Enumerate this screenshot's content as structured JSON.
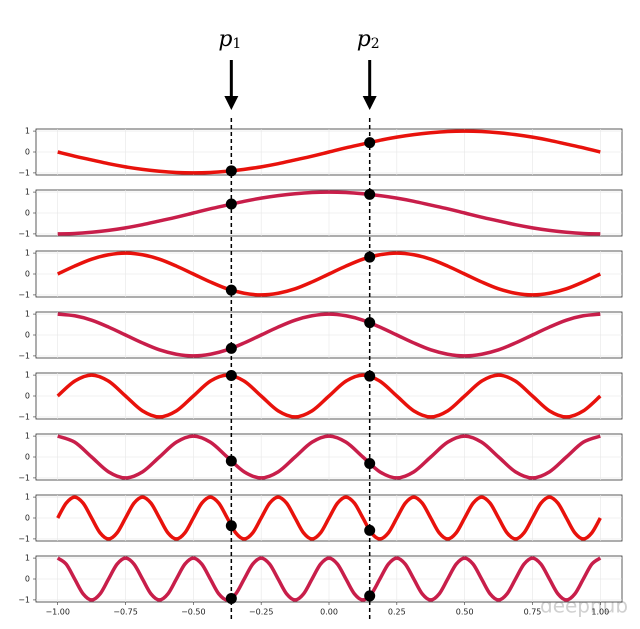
{
  "chart_data": [
    {
      "type": "line",
      "xlim": [
        -1.08,
        1.08
      ],
      "ylim": [
        -1.1,
        1.1
      ],
      "yticks": [
        {
          "value": -1,
          "label": "−1"
        },
        0,
        1
      ],
      "grid": true,
      "x": [
        -1,
        -0.9375,
        -0.875,
        -0.8125,
        -0.75,
        -0.6875,
        -0.625,
        -0.5625,
        -0.5,
        -0.4375,
        -0.375,
        -0.3125,
        -0.25,
        -0.1875,
        -0.125,
        -0.0625,
        0,
        0.0625,
        0.125,
        0.1875,
        0.25,
        0.3125,
        0.375,
        0.4375,
        0.5,
        0.5625,
        0.625,
        0.6875,
        0.75,
        0.8125,
        0.875,
        0.9375,
        1
      ],
      "series": [
        {
          "color": "#e8120c",
          "values": [
            0,
            -0.2,
            -0.38,
            -0.56,
            -0.71,
            -0.83,
            -0.92,
            -0.98,
            -1,
            -0.98,
            -0.92,
            -0.83,
            -0.71,
            -0.56,
            -0.38,
            -0.2,
            0,
            0.2,
            0.38,
            0.56,
            0.71,
            0.83,
            0.92,
            0.98,
            1,
            0.98,
            0.92,
            0.83,
            0.71,
            0.56,
            0.38,
            0.2,
            0
          ]
        }
      ],
      "markers": {
        "color": "#000000",
        "x": [
          -0.36,
          0.15
        ],
        "values": [
          -0.9,
          0.45
        ]
      }
    },
    {
      "type": "line",
      "xlim": [
        -1.08,
        1.08
      ],
      "ylim": [
        -1.1,
        1.1
      ],
      "yticks": [
        {
          "value": -1,
          "label": "−1"
        },
        0,
        1
      ],
      "grid": true,
      "x": [
        -1,
        -0.9375,
        -0.875,
        -0.8125,
        -0.75,
        -0.6875,
        -0.625,
        -0.5625,
        -0.5,
        -0.4375,
        -0.375,
        -0.3125,
        -0.25,
        -0.1875,
        -0.125,
        -0.0625,
        0,
        0.0625,
        0.125,
        0.1875,
        0.25,
        0.3125,
        0.375,
        0.4375,
        0.5,
        0.5625,
        0.625,
        0.6875,
        0.75,
        0.8125,
        0.875,
        0.9375,
        1
      ],
      "series": [
        {
          "color": "#c81e4a",
          "values": [
            -1,
            -0.98,
            -0.92,
            -0.83,
            -0.71,
            -0.56,
            -0.38,
            -0.2,
            0,
            0.2,
            0.38,
            0.56,
            0.71,
            0.83,
            0.92,
            0.98,
            1,
            0.98,
            0.92,
            0.83,
            0.71,
            0.56,
            0.38,
            0.2,
            0,
            -0.2,
            -0.38,
            -0.56,
            -0.71,
            -0.83,
            -0.92,
            -0.98,
            -1
          ]
        }
      ],
      "markers": {
        "color": "#000000",
        "x": [
          -0.36,
          0.15
        ],
        "values": [
          0.43,
          0.89
        ]
      }
    },
    {
      "type": "line",
      "xlim": [
        -1.08,
        1.08
      ],
      "ylim": [
        -1.1,
        1.1
      ],
      "yticks": [
        {
          "value": -1,
          "label": "−1"
        },
        0,
        1
      ],
      "grid": true,
      "x": [
        -1,
        -0.9375,
        -0.875,
        -0.8125,
        -0.75,
        -0.6875,
        -0.625,
        -0.5625,
        -0.5,
        -0.4375,
        -0.375,
        -0.3125,
        -0.25,
        -0.1875,
        -0.125,
        -0.0625,
        0,
        0.0625,
        0.125,
        0.1875,
        0.25,
        0.3125,
        0.375,
        0.4375,
        0.5,
        0.5625,
        0.625,
        0.6875,
        0.75,
        0.8125,
        0.875,
        0.9375,
        1
      ],
      "series": [
        {
          "color": "#e8120c",
          "values": [
            0,
            0.38,
            0.71,
            0.92,
            1,
            0.92,
            0.71,
            0.38,
            0,
            -0.38,
            -0.71,
            -0.92,
            -1,
            -0.92,
            -0.71,
            -0.38,
            0,
            0.38,
            0.71,
            0.92,
            1,
            0.92,
            0.71,
            0.38,
            0,
            -0.38,
            -0.71,
            -0.92,
            -1,
            -0.92,
            -0.71,
            -0.38,
            0
          ]
        }
      ],
      "markers": {
        "color": "#000000",
        "x": [
          -0.36,
          0.15
        ],
        "values": [
          -0.77,
          0.81
        ]
      }
    },
    {
      "type": "line",
      "xlim": [
        -1.08,
        1.08
      ],
      "ylim": [
        -1.1,
        1.1
      ],
      "yticks": [
        {
          "value": -1,
          "label": "−1"
        },
        0,
        1
      ],
      "grid": true,
      "x": [
        -1,
        -0.9375,
        -0.875,
        -0.8125,
        -0.75,
        -0.6875,
        -0.625,
        -0.5625,
        -0.5,
        -0.4375,
        -0.375,
        -0.3125,
        -0.25,
        -0.1875,
        -0.125,
        -0.0625,
        0,
        0.0625,
        0.125,
        0.1875,
        0.25,
        0.3125,
        0.375,
        0.4375,
        0.5,
        0.5625,
        0.625,
        0.6875,
        0.75,
        0.8125,
        0.875,
        0.9375,
        1
      ],
      "series": [
        {
          "color": "#c81e4a",
          "values": [
            1,
            0.92,
            0.71,
            0.38,
            0,
            -0.38,
            -0.71,
            -0.92,
            -1,
            -0.92,
            -0.71,
            -0.38,
            0,
            0.38,
            0.71,
            0.92,
            1,
            0.92,
            0.71,
            0.38,
            0,
            -0.38,
            -0.71,
            -0.92,
            -1,
            -0.92,
            -0.71,
            -0.38,
            0,
            0.38,
            0.71,
            0.92,
            1
          ]
        }
      ],
      "markers": {
        "color": "#000000",
        "x": [
          -0.36,
          0.15
        ],
        "values": [
          -0.64,
          0.59
        ]
      }
    },
    {
      "type": "line",
      "xlim": [
        -1.08,
        1.08
      ],
      "ylim": [
        -1.1,
        1.1
      ],
      "yticks": [
        {
          "value": -1,
          "label": "−1"
        },
        0,
        1
      ],
      "grid": true,
      "x": [
        -1,
        -0.9375,
        -0.875,
        -0.8125,
        -0.75,
        -0.6875,
        -0.625,
        -0.5625,
        -0.5,
        -0.4375,
        -0.375,
        -0.3125,
        -0.25,
        -0.1875,
        -0.125,
        -0.0625,
        0,
        0.0625,
        0.125,
        0.1875,
        0.25,
        0.3125,
        0.375,
        0.4375,
        0.5,
        0.5625,
        0.625,
        0.6875,
        0.75,
        0.8125,
        0.875,
        0.9375,
        1
      ],
      "series": [
        {
          "color": "#e8120c",
          "values": [
            0,
            0.71,
            1,
            0.71,
            0,
            -0.71,
            -1,
            -0.71,
            0,
            0.71,
            1,
            0.71,
            0,
            -0.71,
            -1,
            -0.71,
            0,
            0.71,
            1,
            0.71,
            0,
            -0.71,
            -1,
            -0.71,
            0,
            0.71,
            1,
            0.71,
            0,
            -0.71,
            -1,
            -0.71,
            0
          ]
        }
      ],
      "markers": {
        "color": "#000000",
        "x": [
          -0.36,
          0.15
        ],
        "values": [
          0.98,
          0.95
        ]
      }
    },
    {
      "type": "line",
      "xlim": [
        -1.08,
        1.08
      ],
      "ylim": [
        -1.1,
        1.1
      ],
      "yticks": [
        {
          "value": -1,
          "label": "−1"
        },
        0,
        1
      ],
      "grid": true,
      "x": [
        -1,
        -0.9375,
        -0.875,
        -0.8125,
        -0.75,
        -0.6875,
        -0.625,
        -0.5625,
        -0.5,
        -0.4375,
        -0.375,
        -0.3125,
        -0.25,
        -0.1875,
        -0.125,
        -0.0625,
        0,
        0.0625,
        0.125,
        0.1875,
        0.25,
        0.3125,
        0.375,
        0.4375,
        0.5,
        0.5625,
        0.625,
        0.6875,
        0.75,
        0.8125,
        0.875,
        0.9375,
        1
      ],
      "series": [
        {
          "color": "#c81e4a",
          "values": [
            1,
            0.71,
            0,
            -0.71,
            -1,
            -0.71,
            0,
            0.71,
            1,
            0.71,
            0,
            -0.71,
            -1,
            -0.71,
            0,
            0.71,
            1,
            0.71,
            0,
            -0.71,
            -1,
            -0.71,
            0,
            0.71,
            1,
            0.71,
            0,
            -0.71,
            -1,
            -0.71,
            0,
            0.71,
            1
          ]
        }
      ],
      "markers": {
        "color": "#000000",
        "x": [
          -0.36,
          0.15
        ],
        "values": [
          -0.19,
          -0.31
        ]
      }
    },
    {
      "type": "line",
      "xlim": [
        -1.08,
        1.08
      ],
      "ylim": [
        -1.1,
        1.1
      ],
      "yticks": [
        {
          "value": -1,
          "label": "−1"
        },
        0,
        1
      ],
      "grid": true,
      "x": [
        -1,
        -0.96875,
        -0.9375,
        -0.90625,
        -0.875,
        -0.84375,
        -0.8125,
        -0.78125,
        -0.75,
        -0.71875,
        -0.6875,
        -0.65625,
        -0.625,
        -0.59375,
        -0.5625,
        -0.53125,
        -0.5,
        -0.46875,
        -0.4375,
        -0.40625,
        -0.375,
        -0.34375,
        -0.3125,
        -0.28125,
        -0.25,
        -0.21875,
        -0.1875,
        -0.15625,
        -0.125,
        -0.09375,
        -0.0625,
        -0.03125,
        0,
        0.03125,
        0.0625,
        0.09375,
        0.125,
        0.15625,
        0.1875,
        0.21875,
        0.25,
        0.28125,
        0.3125,
        0.34375,
        0.375,
        0.40625,
        0.4375,
        0.46875,
        0.5,
        0.53125,
        0.5625,
        0.59375,
        0.625,
        0.65625,
        0.6875,
        0.71875,
        0.75,
        0.78125,
        0.8125,
        0.84375,
        0.875,
        0.90625,
        0.9375,
        0.96875,
        1
      ],
      "series": [
        {
          "color": "#e8120c",
          "values": [
            0,
            0.71,
            1,
            0.71,
            0,
            -0.71,
            -1,
            -0.71,
            0,
            0.71,
            1,
            0.71,
            0,
            -0.71,
            -1,
            -0.71,
            0,
            0.71,
            1,
            0.71,
            0,
            -0.71,
            -1,
            -0.71,
            0,
            0.71,
            1,
            0.71,
            0,
            -0.71,
            -1,
            -0.71,
            0,
            0.71,
            1,
            0.71,
            0,
            -0.71,
            -1,
            -0.71,
            0,
            0.71,
            1,
            0.71,
            0,
            -0.71,
            -1,
            -0.71,
            0,
            0.71,
            1,
            0.71,
            0,
            -0.71,
            -1,
            -0.71,
            0,
            0.71,
            1,
            0.71,
            0,
            -0.71,
            -1,
            -0.71,
            0
          ]
        }
      ],
      "markers": {
        "color": "#000000",
        "x": [
          -0.36,
          0.15
        ],
        "values": [
          -0.37,
          -0.59
        ]
      }
    },
    {
      "type": "line",
      "xlim": [
        -1.08,
        1.08
      ],
      "ylim": [
        -1.1,
        1.1
      ],
      "yticks": [
        {
          "value": -1,
          "label": "−1"
        },
        0,
        1
      ],
      "grid": true,
      "xticks": [
        {
          "value": -1,
          "label": "−1.00"
        },
        {
          "value": -0.75,
          "label": "−0.75"
        },
        {
          "value": -0.5,
          "label": "−0.50"
        },
        {
          "value": -0.25,
          "label": "−0.25"
        },
        {
          "value": 0,
          "label": "0.00"
        },
        {
          "value": 0.25,
          "label": "0.25"
        },
        {
          "value": 0.5,
          "label": "0.50"
        },
        {
          "value": 0.75,
          "label": "0.75"
        },
        {
          "value": 1,
          "label": "1.00"
        }
      ],
      "x": [
        -1,
        -0.96875,
        -0.9375,
        -0.90625,
        -0.875,
        -0.84375,
        -0.8125,
        -0.78125,
        -0.75,
        -0.71875,
        -0.6875,
        -0.65625,
        -0.625,
        -0.59375,
        -0.5625,
        -0.53125,
        -0.5,
        -0.46875,
        -0.4375,
        -0.40625,
        -0.375,
        -0.34375,
        -0.3125,
        -0.28125,
        -0.25,
        -0.21875,
        -0.1875,
        -0.15625,
        -0.125,
        -0.09375,
        -0.0625,
        -0.03125,
        0,
        0.03125,
        0.0625,
        0.09375,
        0.125,
        0.15625,
        0.1875,
        0.21875,
        0.25,
        0.28125,
        0.3125,
        0.34375,
        0.375,
        0.40625,
        0.4375,
        0.46875,
        0.5,
        0.53125,
        0.5625,
        0.59375,
        0.625,
        0.65625,
        0.6875,
        0.71875,
        0.75,
        0.78125,
        0.8125,
        0.84375,
        0.875,
        0.90625,
        0.9375,
        0.96875,
        1
      ],
      "series": [
        {
          "color": "#c81e4a",
          "values": [
            1,
            0.71,
            0,
            -0.71,
            -1,
            -0.71,
            0,
            0.71,
            1,
            0.71,
            0,
            -0.71,
            -1,
            -0.71,
            0,
            0.71,
            1,
            0.71,
            0,
            -0.71,
            -1,
            -0.71,
            0,
            0.71,
            1,
            0.71,
            0,
            -0.71,
            -1,
            -0.71,
            0,
            0.71,
            1,
            0.71,
            0,
            -0.71,
            -1,
            -0.71,
            0,
            0.71,
            1,
            0.71,
            0,
            -0.71,
            -1,
            -0.71,
            0,
            0.71,
            1,
            0.71,
            0,
            -0.71,
            -1,
            -0.71,
            0,
            0.71,
            1,
            0.71,
            0,
            -0.71,
            -1,
            -0.71,
            0,
            0.71,
            1
          ]
        }
      ],
      "markers": {
        "color": "#000000",
        "x": [
          -0.36,
          0.15
        ],
        "values": [
          -0.93,
          -0.81
        ]
      }
    }
  ],
  "annotations": [
    {
      "text": "p",
      "subscript": "1",
      "x": -0.36
    },
    {
      "text": "p",
      "subscript": "2",
      "x": 0.15
    }
  ],
  "watermark": "deephub"
}
